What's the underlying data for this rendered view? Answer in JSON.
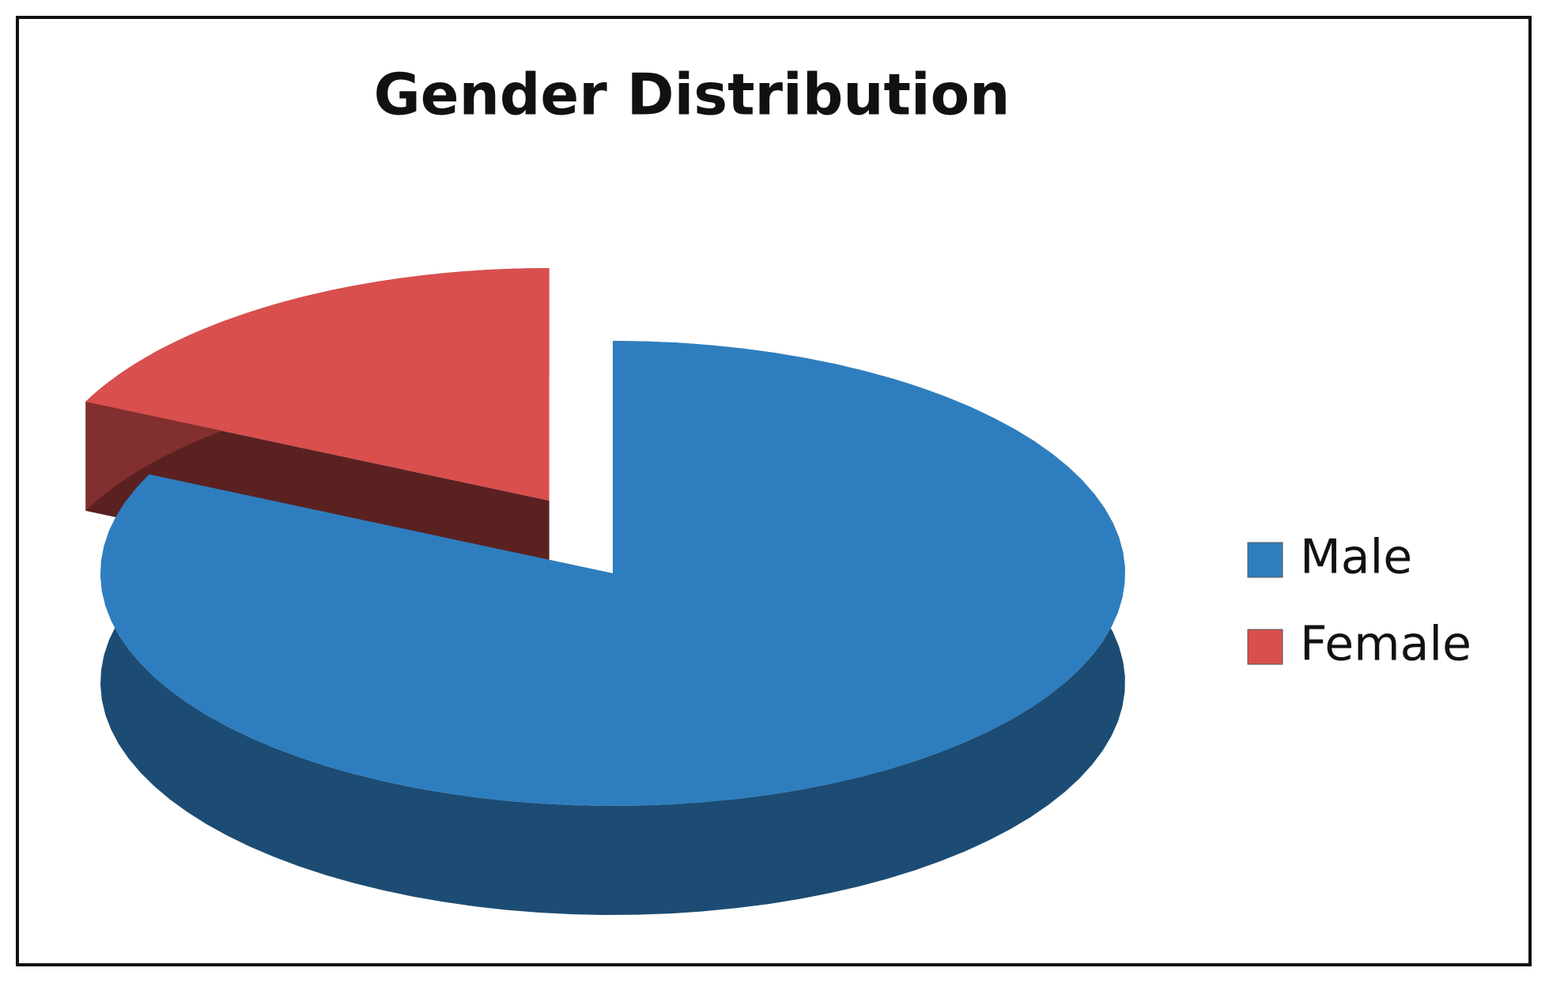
{
  "chart_data": {
    "type": "pie",
    "title": "Gender Distribution",
    "categories": [
      "Male",
      "Female"
    ],
    "values": [
      82,
      18
    ],
    "colors": [
      "#2e7ebf",
      "#d84f4e"
    ],
    "legend": "right"
  }
}
